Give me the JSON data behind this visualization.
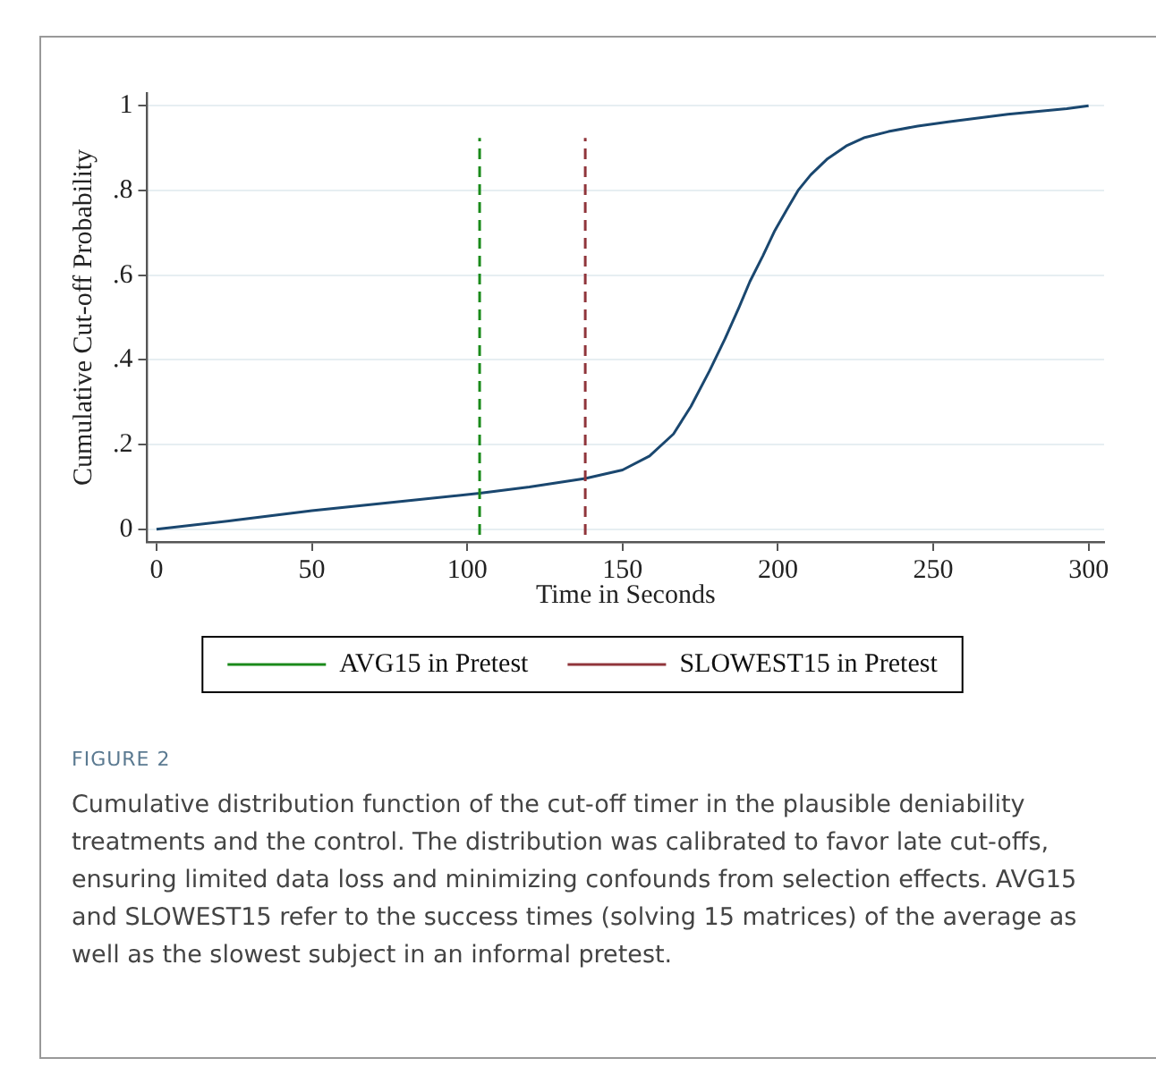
{
  "chart_data": {
    "type": "line",
    "xlabel": "Time in Seconds",
    "ylabel": "Cumulative Cut-off Probability",
    "x": [
      0,
      25,
      50,
      75,
      104,
      120,
      138,
      150,
      158.7,
      166.4,
      172,
      178,
      183,
      187.5,
      191,
      195.2,
      199,
      202.9,
      206.5,
      210.6,
      216,
      222,
      228,
      235.6,
      245,
      254.8,
      274,
      293,
      300
    ],
    "series": [
      {
        "color": "#1a476f",
        "values": [
          0,
          0.021,
          0.044,
          0.063,
          0.085,
          0.1,
          0.12,
          0.14,
          0.173,
          0.225,
          0.29,
          0.374,
          0.45,
          0.524,
          0.585,
          0.646,
          0.705,
          0.755,
          0.8,
          0.837,
          0.875,
          0.905,
          0.925,
          0.939,
          0.952,
          0.962,
          0.98,
          0.993,
          1.0
        ]
      }
    ],
    "xlim": [
      -3,
      305
    ],
    "xticks": [
      0,
      50,
      100,
      150,
      200,
      250,
      300
    ],
    "ylim": [
      -0.03,
      1.03
    ],
    "yticks": [
      {
        "value": 0,
        "label": "0"
      },
      {
        "value": 0.2,
        "label": ".2"
      },
      {
        "value": 0.4,
        "label": ".4"
      },
      {
        "value": 0.6,
        "label": ".6"
      },
      {
        "value": 0.8,
        "label": ".8"
      },
      {
        "value": 1,
        "label": "1"
      }
    ],
    "grid": "y",
    "legend": "bottom",
    "line_style": "solid",
    "marker": "none",
    "ref_lines": [
      {
        "axis": "x",
        "value": 104,
        "label": "AVG15 in Pretest",
        "color": "#1a8a1a",
        "line_style": "dashed"
      },
      {
        "axis": "x",
        "value": 138,
        "label": "SLOWEST15 in Pretest",
        "color": "#90353b",
        "line_style": "dashed"
      }
    ],
    "annotations": [
      "FIGURE 2",
      "Cumulative distribution function of the cut-off timer in the plausible deniability treatments and the control. The distribution was calibrated to favor late cut-offs, ensuring limited data loss and minimizing confounds from selection effects. AVG15 and SLOWEST15 refer to the success times (solving 15 matrices) of the average as well as the slowest subject in an informal pretest."
    ]
  }
}
